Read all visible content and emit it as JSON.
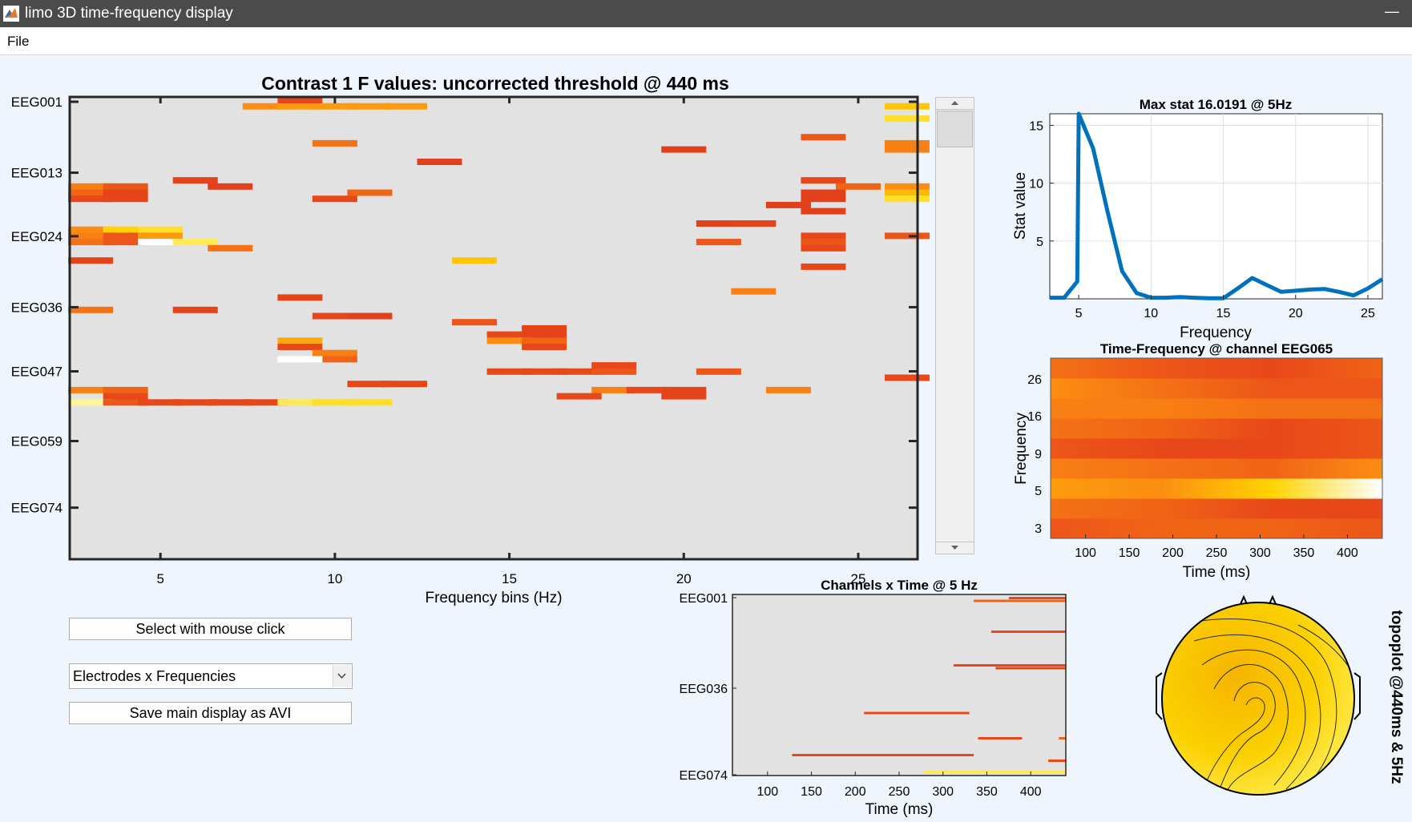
{
  "window": {
    "title": "limo 3D time-frequency display",
    "min_symbol": "—"
  },
  "menu": {
    "file": "File"
  },
  "colors": {
    "background": "#eef5fc",
    "panel_bg": "#e2e2e2",
    "line": "#0072bd",
    "cold": "#d7301f",
    "hot": "#ffd400"
  },
  "controls": {
    "select_button": "Select with mouse click",
    "display_select": {
      "selected": "Electrodes x Frequencies"
    },
    "save_button": "Save main display as AVI"
  },
  "main_plot": {
    "title": "Contrast 1 F values: uncorrected threshold @ 440 ms",
    "xlabel": "Frequency bins (Hz)",
    "xticks": [
      "5",
      "10",
      "15",
      "20",
      "25"
    ],
    "yticks": [
      "EEG001",
      "EEG013",
      "EEG024",
      "EEG036",
      "EEG047",
      "EEG059",
      "EEG074"
    ]
  },
  "max_stat_plot": {
    "title": "Max stat 16.0191 @ 5Hz",
    "xlabel": "Frequency",
    "ylabel": "Stat value",
    "xticks": [
      "5",
      "10",
      "15",
      "20",
      "25"
    ],
    "yticks": [
      "15",
      "10",
      "5"
    ]
  },
  "tf_plot": {
    "title": "Time-Frequency @ channel EEG065",
    "xlabel": "Time (ms)",
    "ylabel": "Frequency",
    "xticks": [
      "100",
      "150",
      "200",
      "250",
      "300",
      "350",
      "400"
    ],
    "yticks": [
      "26",
      "16",
      "9",
      "5",
      "3"
    ]
  },
  "ct_plot": {
    "title": "Channels x Time @ 5 Hz",
    "xlabel": "Time (ms)",
    "xticks": [
      "100",
      "150",
      "200",
      "250",
      "300",
      "350",
      "400"
    ],
    "yticks": [
      "EEG001",
      "EEG036",
      "EEG074"
    ]
  },
  "topoplot": {
    "label": "topoplot @440ms & 5Hz"
  },
  "chart_data": [
    {
      "type": "heatmap",
      "title": "Contrast 1 F values: uncorrected threshold @ 440 ms",
      "xlabel": "Frequency bins (Hz)",
      "ylabel": "",
      "xlim": [
        2.4,
        26.7
      ],
      "x_categories": [
        "EEG001",
        "EEG013",
        "EEG024",
        "EEG036",
        "EEG047",
        "EEG059",
        "EEG074"
      ],
      "note_cells": "cells given as [frequency_Hz, channel_index_0to73, F_intensity_0to1]",
      "cells": [
        [
          8,
          1,
          0.55
        ],
        [
          9,
          1,
          0.6
        ],
        [
          10,
          1,
          0.6
        ],
        [
          11,
          1,
          0.6
        ],
        [
          12,
          1,
          0.6
        ],
        [
          9,
          0,
          0.3
        ],
        [
          26.4,
          1,
          0.75
        ],
        [
          26.4,
          3,
          0.85
        ],
        [
          10,
          7,
          0.45
        ],
        [
          20,
          8,
          0.2
        ],
        [
          13,
          10,
          0.2
        ],
        [
          24,
          6,
          0.35
        ],
        [
          26.4,
          7,
          0.5
        ],
        [
          26.4,
          8,
          0.5
        ],
        [
          3,
          14,
          0.5
        ],
        [
          4,
          14,
          0.35
        ],
        [
          3,
          15,
          0.4
        ],
        [
          4,
          15,
          0.25
        ],
        [
          3,
          16,
          0.3
        ],
        [
          4,
          16,
          0.25
        ],
        [
          6,
          13,
          0.25
        ],
        [
          7,
          14,
          0.2
        ],
        [
          10,
          16,
          0.3
        ],
        [
          11,
          15,
          0.4
        ],
        [
          24,
          13,
          0.3
        ],
        [
          24,
          15,
          0.2
        ],
        [
          24,
          16,
          0.2
        ],
        [
          23,
          17,
          0.2
        ],
        [
          24,
          18,
          0.2
        ],
        [
          26.4,
          14,
          0.55
        ],
        [
          26.4,
          15,
          0.7
        ],
        [
          26.4,
          16,
          0.85
        ],
        [
          25,
          14,
          0.4
        ],
        [
          21,
          20,
          0.2
        ],
        [
          22,
          20,
          0.25
        ],
        [
          3,
          21,
          0.55
        ],
        [
          4,
          21,
          0.8
        ],
        [
          5,
          21,
          0.85
        ],
        [
          3,
          22,
          0.5
        ],
        [
          4,
          22,
          0.35
        ],
        [
          5,
          22,
          0.6
        ],
        [
          3,
          23,
          0.45
        ],
        [
          4,
          23,
          0.35
        ],
        [
          5,
          23,
          1.0
        ],
        [
          6,
          23,
          0.9
        ],
        [
          7,
          24,
          0.45
        ],
        [
          21,
          23,
          0.35
        ],
        [
          24,
          22,
          0.3
        ],
        [
          24,
          23,
          0.35
        ],
        [
          24,
          24,
          0.3
        ],
        [
          26.4,
          22,
          0.35
        ],
        [
          3,
          26,
          0.25
        ],
        [
          14,
          26,
          0.75
        ],
        [
          24,
          27,
          0.3
        ],
        [
          9,
          32,
          0.25
        ],
        [
          22,
          31,
          0.5
        ],
        [
          3,
          34,
          0.45
        ],
        [
          6,
          34,
          0.25
        ],
        [
          10,
          35,
          0.3
        ],
        [
          11,
          35,
          0.2
        ],
        [
          14,
          36,
          0.35
        ],
        [
          15,
          38,
          0.3
        ],
        [
          16,
          38,
          0.25
        ],
        [
          15,
          39,
          0.55
        ],
        [
          16,
          39,
          0.4
        ],
        [
          16,
          37,
          0.25
        ],
        [
          16,
          40,
          0.3
        ],
        [
          9,
          39,
          0.65
        ],
        [
          9,
          40,
          0.3
        ],
        [
          10,
          41,
          0.5
        ],
        [
          10,
          42,
          0.4
        ],
        [
          9,
          42,
          1.0
        ],
        [
          15,
          44,
          0.3
        ],
        [
          16,
          44,
          0.3
        ],
        [
          17,
          44,
          0.3
        ],
        [
          18,
          44,
          0.35
        ],
        [
          18,
          43,
          0.3
        ],
        [
          21,
          44,
          0.35
        ],
        [
          26.4,
          45,
          0.3
        ],
        [
          3,
          47,
          0.5
        ],
        [
          4,
          47,
          0.4
        ],
        [
          4,
          48,
          0.3
        ],
        [
          11,
          46,
          0.3
        ],
        [
          12,
          46,
          0.3
        ],
        [
          18,
          47,
          0.5
        ],
        [
          19,
          47,
          0.3
        ],
        [
          20,
          47,
          0.25
        ],
        [
          20,
          48,
          0.25
        ],
        [
          17,
          48,
          0.3
        ],
        [
          23,
          47,
          0.5
        ],
        [
          3,
          49,
          0.95
        ],
        [
          4,
          49,
          0.35
        ],
        [
          5,
          49,
          0.3
        ],
        [
          6,
          49,
          0.3
        ],
        [
          7,
          49,
          0.3
        ],
        [
          8,
          49,
          0.3
        ],
        [
          9,
          49,
          0.9
        ],
        [
          10,
          49,
          0.85
        ],
        [
          11,
          49,
          0.85
        ]
      ]
    },
    {
      "type": "line",
      "title": "Max stat 16.0191 @ 5Hz",
      "xlabel": "Frequency",
      "ylabel": "Stat value",
      "xlim": [
        3,
        26
      ],
      "ylim": [
        0,
        16
      ],
      "x": [
        3,
        4,
        4.9,
        5,
        6,
        7,
        8,
        9,
        10,
        11,
        12,
        13,
        14,
        15,
        16,
        17,
        18,
        19,
        20,
        21,
        22,
        23,
        24,
        25,
        26
      ],
      "values": [
        0.1,
        0.1,
        1.5,
        16.0,
        13.0,
        7.5,
        2.4,
        0.5,
        0.1,
        0.1,
        0.15,
        0.1,
        0.05,
        0.05,
        0.9,
        1.8,
        1.2,
        0.6,
        0.7,
        0.8,
        0.85,
        0.6,
        0.3,
        0.9,
        1.7
      ]
    },
    {
      "type": "heatmap",
      "title": "Time-Frequency @ channel EEG065",
      "xlabel": "Time (ms)",
      "ylabel": "Frequency",
      "xlim": [
        60,
        440
      ],
      "rows_frequency": [
        3,
        4,
        5,
        7,
        9,
        12,
        16,
        21,
        26
      ],
      "note_rows": "row intensities 0..1 along time from 60 to 440 ms",
      "rows": [
        [
          0.35,
          0.4,
          0.4,
          0.35
        ],
        [
          0.45,
          0.4,
          0.3,
          0.3
        ],
        [
          0.6,
          0.55,
          0.8,
          1.0
        ],
        [
          0.5,
          0.45,
          0.4,
          0.55
        ],
        [
          0.35,
          0.3,
          0.3,
          0.35
        ],
        [
          0.45,
          0.4,
          0.3,
          0.35
        ],
        [
          0.5,
          0.5,
          0.45,
          0.45
        ],
        [
          0.55,
          0.45,
          0.35,
          0.35
        ],
        [
          0.45,
          0.35,
          0.3,
          0.4
        ]
      ]
    },
    {
      "type": "heatmap",
      "title": "Channels x Time @ 5 Hz",
      "xlabel": "Time (ms)",
      "xlim": [
        60,
        440
      ],
      "note_segments": "segments given as [start_ms, end_ms, channel_index_0to73, intensity_0to1]",
      "segments": [
        [
          375,
          440,
          0,
          0.3
        ],
        [
          335,
          440,
          1,
          0.4
        ],
        [
          355,
          440,
          12,
          0.3
        ],
        [
          312,
          360,
          24,
          0.3
        ],
        [
          360,
          440,
          24,
          0.3
        ],
        [
          360,
          440,
          25,
          0.25
        ],
        [
          210,
          330,
          41,
          0.3
        ],
        [
          340,
          390,
          50,
          0.3
        ],
        [
          432,
          440,
          50,
          0.4
        ],
        [
          128,
          335,
          56,
          0.3
        ],
        [
          420,
          440,
          58,
          0.3
        ],
        [
          278,
          440,
          62,
          0.9
        ]
      ]
    }
  ]
}
